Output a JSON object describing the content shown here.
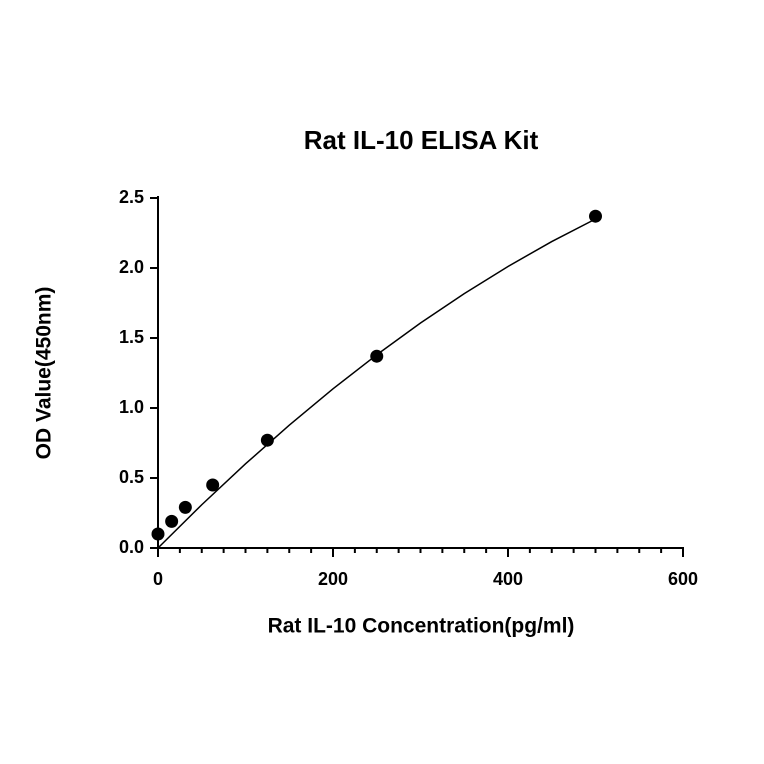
{
  "chart_data": {
    "type": "scatter",
    "title": "Rat IL-10 ELISA Kit",
    "xlabel": "Rat IL-10 Concentration(pg/ml)",
    "ylabel": "OD Value(450nm)",
    "x": [
      0,
      15.6,
      31.25,
      62.5,
      125,
      250,
      500
    ],
    "values": [
      0.1,
      0.19,
      0.29,
      0.45,
      0.77,
      1.37,
      2.37
    ],
    "color": "#000000",
    "curve": {
      "x": [
        0,
        50,
        100,
        150,
        200,
        250,
        300,
        350,
        400,
        450,
        500
      ],
      "values": [
        0,
        0.309,
        0.601,
        0.877,
        1.137,
        1.38,
        1.607,
        1.817,
        2.011,
        2.189,
        2.35
      ]
    },
    "xlim": [
      0,
      600
    ],
    "ylim": [
      0,
      2.5
    ],
    "xticks": [
      0,
      200,
      400,
      600
    ],
    "xminor_step": 25,
    "yticks": [
      {
        "value": 0,
        "label": "0.0"
      },
      {
        "value": 0.5,
        "label": "0.5"
      },
      {
        "value": 1,
        "label": "1.0"
      },
      {
        "value": 1.5,
        "label": "1.5"
      },
      {
        "value": 2,
        "label": "2.0"
      },
      {
        "value": 2.5,
        "label": "2.5"
      }
    ]
  }
}
